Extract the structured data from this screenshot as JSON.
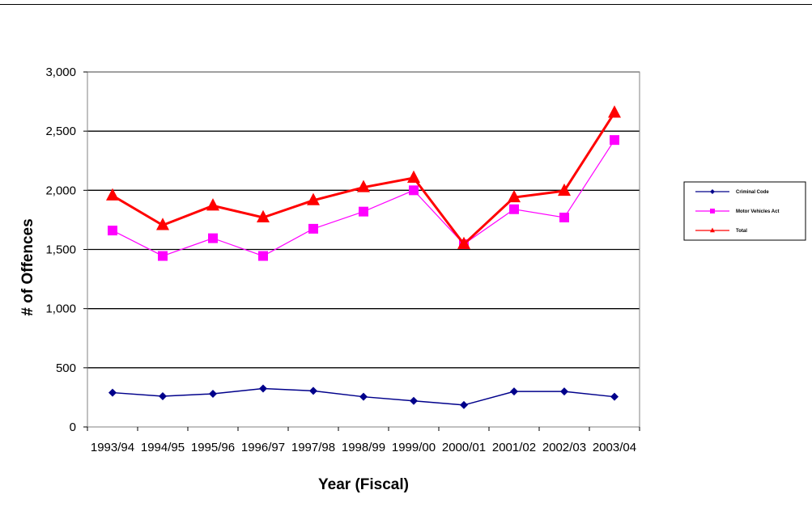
{
  "chart_data": {
    "type": "line",
    "title": "",
    "xlabel": "Year (Fiscal)",
    "ylabel": "# of Offences",
    "ylim": [
      0,
      3000
    ],
    "yticks": [
      "0",
      "500",
      "1,000",
      "1,500",
      "2,000",
      "2,500",
      "3,000"
    ],
    "ytick_values": [
      0,
      500,
      1000,
      1500,
      2000,
      2500,
      3000
    ],
    "grid": true,
    "legend_position": "right",
    "categories": [
      "1993/94",
      "1994/95",
      "1995/96",
      "1996/97",
      "1997/98",
      "1998/99",
      "1999/00",
      "2000/01",
      "2001/02",
      "2002/03",
      "2003/04"
    ],
    "series": [
      {
        "name": "Criminal Code",
        "color": "#00008B",
        "marker": "diamond",
        "values": [
          290,
          260,
          280,
          325,
          305,
          255,
          220,
          185,
          300,
          300,
          255
        ]
      },
      {
        "name": "Motor Vehicles Act",
        "color": "#FF00FF",
        "marker": "square",
        "values": [
          1660,
          1445,
          1595,
          1445,
          1675,
          1820,
          2000,
          1545,
          1840,
          1770,
          2425
        ]
      },
      {
        "name": "Total",
        "color": "#FF0000",
        "marker": "triangle",
        "values": [
          1955,
          1705,
          1870,
          1770,
          1915,
          2025,
          2105,
          1545,
          1940,
          1995,
          2655
        ]
      }
    ]
  }
}
